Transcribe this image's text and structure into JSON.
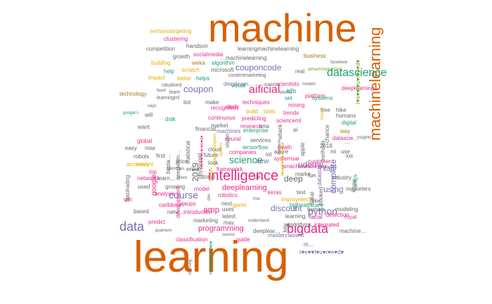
{
  "colors": {
    "orange": "#d95f02",
    "purple": "#7570b3",
    "magenta": "#e7298a",
    "green": "#66a61e",
    "mustard": "#e6ab02",
    "teal": "#1b9e77",
    "brown": "#a6761d",
    "gray": "#666666"
  },
  "words": [
    {
      "text": "machine",
      "color": "orange",
      "size": 56
    },
    {
      "text": "learning",
      "color": "orange",
      "size": 62
    },
    {
      "text": "machinelearning",
      "color": "orange",
      "size": 22,
      "rot": true
    },
    {
      "text": "intelligence",
      "color": "magenta",
      "size": 20
    },
    {
      "text": "bigdata",
      "color": "magenta",
      "size": 18
    },
    {
      "text": "data",
      "color": "purple",
      "size": 18
    },
    {
      "text": "datascience",
      "color": "teal",
      "size": 16
    },
    {
      "text": "aificial",
      "color": "magenta",
      "size": 16
    },
    {
      "text": "science",
      "color": "teal",
      "size": 14
    },
    {
      "text": "course",
      "color": "purple",
      "size": 14
    },
    {
      "text": "python",
      "color": "purple",
      "size": 14
    },
    {
      "text": "coupon",
      "color": "purple",
      "size": 13
    },
    {
      "text": "couponcode",
      "color": "purple",
      "size": 12
    },
    {
      "text": "discount",
      "color": "purple",
      "size": 12
    },
    {
      "text": "deep",
      "color": "gray",
      "size": 12
    },
    {
      "text": "udemy",
      "color": "purple",
      "size": 12
    },
    {
      "text": "complete",
      "color": "purple",
      "size": 12,
      "rot": true
    },
    {
      "text": "amp",
      "color": "magenta",
      "size": 12
    },
    {
      "text": "using",
      "color": "purple",
      "size": 12
    },
    {
      "text": "deeplearning",
      "color": "magenta",
      "size": 11
    },
    {
      "text": "programming",
      "color": "magenta",
      "size": 11
    },
    {
      "text": "google",
      "color": "magenta",
      "size": 10,
      "rot": true
    },
    {
      "text": "2019",
      "color": "gray",
      "size": 12,
      "rot": true
    },
    {
      "text": "learningmachinelearning",
      "color": "gray",
      "size": 8
    },
    {
      "text": "semseotargeting",
      "color": "mustard",
      "size": 8
    },
    {
      "text": "clustering",
      "color": "magenta",
      "size": 8
    },
    {
      "text": "handson",
      "color": "gray",
      "size": 8
    },
    {
      "text": "business",
      "color": "brown",
      "size": 8
    },
    {
      "text": "competition",
      "color": "gray",
      "size": 8
    },
    {
      "text": "socialmedia",
      "color": "magenta",
      "size": 8
    },
    {
      "text": "…machinelearning",
      "color": "gray",
      "size": 8
    },
    {
      "text": "growth",
      "color": "gray",
      "size": 8
    },
    {
      "text": "building",
      "color": "mustard",
      "size": 8
    },
    {
      "text": "weka",
      "color": "brown",
      "size": 8
    },
    {
      "text": "algorithm",
      "color": "teal",
      "size": 8
    },
    {
      "text": "facebook",
      "color": "gray",
      "size": 6
    },
    {
      "text": "aimachinelearning",
      "color": "green",
      "size": 6
    },
    {
      "text": "help",
      "color": "teal",
      "size": 8
    },
    {
      "text": "scratch",
      "color": "mustard",
      "size": 8
    },
    {
      "text": "microsoft",
      "color": "gray",
      "size": 8
    },
    {
      "text": "real",
      "color": "gray",
      "size": 8
    },
    {
      "text": "impact",
      "color": "mustard",
      "size": 8
    },
    {
      "text": "better",
      "color": "mustard",
      "size": 8
    },
    {
      "text": "helps",
      "color": "teal",
      "size": 8
    },
    {
      "text": "contentmarketing",
      "color": "gray",
      "size": 7
    },
    {
      "text": "rstudioml",
      "color": "gray",
      "size": 7
    },
    {
      "text": "visual",
      "color": "teal",
      "size": 8
    },
    {
      "text": "statistics",
      "color": "gray",
      "size": 6
    },
    {
      "text": "scientists",
      "color": "magenta",
      "size": 8
    },
    {
      "text": "models",
      "color": "gray",
      "size": 6
    },
    {
      "text": "team",
      "color": "gray",
      "size": 6
    },
    {
      "text": "learn",
      "color": "gray",
      "size": 7
    },
    {
      "text": "b2b",
      "color": "teal",
      "size": 8
    },
    {
      "text": "world",
      "color": "gray",
      "size": 7
    },
    {
      "text": "deeplearning…",
      "color": "magenta",
      "size": 8
    },
    {
      "text": "learningml",
      "color": "gray",
      "size": 7
    },
    {
      "text": "technology",
      "color": "brown",
      "size": 8
    },
    {
      "text": "deeplearn…",
      "color": "purple",
      "size": 8
    },
    {
      "text": "set",
      "color": "teal",
      "size": 8
    },
    {
      "text": "platform",
      "color": "magenta",
      "size": 8
    },
    {
      "text": "iiot",
      "color": "gray",
      "size": 8
    },
    {
      "text": "study",
      "color": "magenta",
      "size": 8
    },
    {
      "text": "techniques",
      "color": "magenta",
      "size": 8
    },
    {
      "text": "mining",
      "color": "magenta",
      "size": 8
    },
    {
      "text": "free",
      "color": "gray",
      "size": 8
    },
    {
      "text": "hike",
      "color": "gray",
      "size": 8
    },
    {
      "text": "says",
      "color": "gray",
      "size": 6
    },
    {
      "text": "will",
      "color": "gray",
      "size": 8
    },
    {
      "text": "bigda…",
      "color": "gray",
      "size": 8,
      "rot": true
    },
    {
      "text": "continuous",
      "color": "magenta",
      "size": 8
    },
    {
      "text": "build",
      "color": "mustard",
      "size": 8
    },
    {
      "text": "tools",
      "color": "mustard",
      "size": 8
    },
    {
      "text": "trends",
      "color": "magenta",
      "size": 8
    },
    {
      "text": "humans",
      "color": "gray",
      "size": 8
    },
    {
      "text": "google's",
      "color": "teal",
      "size": 6
    },
    {
      "text": "dstk",
      "color": "teal",
      "size": 8
    },
    {
      "text": "predicting",
      "color": "magenta",
      "size": 8
    },
    {
      "text": "scienceml",
      "color": "magenta",
      "size": 8
    },
    {
      "text": "digital",
      "color": "teal",
      "size": 8
    },
    {
      "text": "want",
      "color": "gray",
      "size": 8
    },
    {
      "text": "machines",
      "color": "purple",
      "size": 8
    },
    {
      "text": "market",
      "color": "gray",
      "size": 8
    },
    {
      "text": "research",
      "color": "magenta",
      "size": 8
    },
    {
      "text": "sma",
      "color": "gray",
      "size": 8
    },
    {
      "text": "way",
      "color": "brown",
      "size": 8
    },
    {
      "text": "global",
      "color": "magenta",
      "size": 8
    },
    {
      "text": "enterprise",
      "color": "teal",
      "size": 8
    },
    {
      "text": "fascinating",
      "color": "gray",
      "size": 8,
      "rot": true
    },
    {
      "text": "easy",
      "color": "gray",
      "size": 8
    },
    {
      "text": "now",
      "color": "gray",
      "size": 8
    },
    {
      "text": "neural",
      "color": "magenta",
      "size": 8
    },
    {
      "text": "services",
      "color": "gray",
      "size": 8
    },
    {
      "text": "datascie…",
      "color": "magenta",
      "size": 8
    },
    {
      "text": "tensorflow",
      "color": "teal",
      "size": 8
    },
    {
      "text": "death",
      "color": "magenta",
      "size": 8
    },
    {
      "text": "first",
      "color": "gray",
      "size": 8
    },
    {
      "text": "future",
      "color": "gray",
      "size": 8
    },
    {
      "text": "cloud",
      "color": "gray",
      "size": 8
    },
    {
      "text": "companies",
      "color": "magenta",
      "size": 8
    },
    {
      "text": "robots",
      "color": "gray",
      "size": 8
    },
    {
      "text": "accuracy",
      "color": "mustard",
      "size": 8
    },
    {
      "text": "price",
      "color": "gray",
      "size": 8
    },
    {
      "text": "look",
      "color": "gray",
      "size": 8
    },
    {
      "text": "systemsai",
      "color": "magenta",
      "size": 8
    },
    {
      "text": "customer",
      "color": "magenta",
      "size": 8
    },
    {
      "text": "ios",
      "color": "gray",
      "size": 8
    },
    {
      "text": "service",
      "color": "mustard",
      "size": 8
    },
    {
      "text": "top",
      "color": "magenta",
      "size": 8
    },
    {
      "text": "launches",
      "color": "gray",
      "size": 6
    },
    {
      "text": "enter",
      "color": "gray",
      "size": 8
    },
    {
      "text": "framework",
      "color": "magenta",
      "size": 8
    },
    {
      "text": "amachinelearning",
      "color": "magenta",
      "size": 8
    },
    {
      "text": "minutes",
      "color": "gray",
      "size": 6
    },
    {
      "text": "networks",
      "color": "magenta",
      "size": 8
    },
    {
      "text": "learn…",
      "color": "gray",
      "size": 8
    },
    {
      "text": "trees",
      "color": "gray",
      "size": 6
    },
    {
      "text": "tutorial",
      "color": "gray",
      "size": 8
    },
    {
      "text": "de…",
      "color": "gray",
      "size": 8
    },
    {
      "text": "used",
      "color": "gray",
      "size": 8
    },
    {
      "text": "growing",
      "color": "gray",
      "size": 8
    },
    {
      "text": "model",
      "color": "magenta",
      "size": 8
    },
    {
      "text": "marke…",
      "color": "gray",
      "size": 8
    },
    {
      "text": "fun",
      "color": "gray",
      "size": 8
    },
    {
      "text": "industry",
      "color": "gray",
      "size": 8
    },
    {
      "text": "analysis",
      "color": "magenta",
      "size": 8
    },
    {
      "text": "robotics",
      "color": "magenta",
      "size": 8
    },
    {
      "text": "text",
      "color": "gray",
      "size": 8
    },
    {
      "text": "marketers",
      "color": "gray",
      "size": 8
    },
    {
      "text": "keras",
      "color": "magenta",
      "size": 8
    },
    {
      "text": "win",
      "color": "magenta",
      "size": 8
    },
    {
      "text": "rise",
      "color": "gray",
      "size": 6
    },
    {
      "text": "improvetech",
      "color": "mustard",
      "size": 8
    },
    {
      "text": "caribbean",
      "color": "magenta",
      "size": 8
    },
    {
      "text": "staups",
      "color": "magenta",
      "size": 8
    },
    {
      "text": "next",
      "color": "gray",
      "size": 8
    },
    {
      "text": "bighealthcare",
      "color": "teal",
      "size": 8
    },
    {
      "text": "based",
      "color": "gray",
      "size": 8
    },
    {
      "text": "netw…",
      "color": "gray",
      "size": 8
    },
    {
      "text": "introduction",
      "color": "magenta",
      "size": 8
    },
    {
      "text": "uses",
      "color": "gray",
      "size": 8
    },
    {
      "text": "gems",
      "color": "mustard",
      "size": 8
    },
    {
      "text": "human",
      "color": "gray",
      "size": 8
    },
    {
      "text": "modeling",
      "color": "gray",
      "size": 8
    },
    {
      "text": "latest",
      "color": "gray",
      "size": 8
    },
    {
      "text": "detection",
      "color": "magenta",
      "size": 8
    },
    {
      "text": "learning…",
      "color": "gray",
      "size": 8
    },
    {
      "text": "facial",
      "color": "magenta",
      "size": 8
    },
    {
      "text": "royal",
      "color": "magenta",
      "size": 8
    },
    {
      "text": "predict",
      "color": "magenta",
      "size": 8
    },
    {
      "text": "marketing",
      "color": "gray",
      "size": 8
    },
    {
      "text": "may",
      "color": "gray",
      "size": 8
    },
    {
      "text": "understand",
      "color": "gray",
      "size": 6
    },
    {
      "text": "algorithms",
      "color": "gray",
      "size": 8
    },
    {
      "text": "integrated",
      "color": "magenta",
      "size": 8
    },
    {
      "text": "machine…",
      "color": "gray",
      "size": 8
    },
    {
      "text": "quantum",
      "color": "gray",
      "size": 6
    },
    {
      "text": "deeplear…",
      "color": "gray",
      "size": 8
    },
    {
      "text": "source",
      "color": "gray",
      "size": 6
    },
    {
      "text": "classification",
      "color": "magenta",
      "size": 8
    },
    {
      "text": "masterclassml",
      "color": "purple",
      "size": 8
    },
    {
      "text": "guide",
      "color": "magenta",
      "size": 8
    },
    {
      "text": "m…",
      "color": "gray",
      "size": 8
    },
    {
      "text": "ℓ♥e♥♥t♥u♥r♥e♥d♥",
      "color": "purple",
      "size": 8
    },
    {
      "text": "recognition",
      "color": "magenta",
      "size": 8
    },
    {
      "text": "vision",
      "color": "gray",
      "size": 8,
      "rot": true
    },
    {
      "text": "deepleam…",
      "color": "gray",
      "size": 8,
      "rot": true
    },
    {
      "text": "statistical",
      "color": "gray",
      "size": 8,
      "rot": true
    },
    {
      "text": "pythonml",
      "color": "gray",
      "size": 8,
      "rot": true
    },
    {
      "text": "make",
      "color": "gray",
      "size": 8
    },
    {
      "text": "development",
      "color": "magenta",
      "size": 8,
      "rot": true
    },
    {
      "text": "ro…",
      "color": "gray",
      "size": 8,
      "rot": true
    },
    {
      "text": "key",
      "color": "gray",
      "size": 8,
      "rot": true
    },
    {
      "text": "staup",
      "color": "gray",
      "size": 8,
      "rot": true
    },
    {
      "text": "hooked",
      "color": "gray",
      "size": 8,
      "rot": true
    },
    {
      "text": "methods",
      "color": "gray",
      "size": 8,
      "rot": true
    },
    {
      "text": "know",
      "color": "gray",
      "size": 8,
      "rot": true
    },
    {
      "text": "chance",
      "color": "gray",
      "size": 8,
      "rot": true
    },
    {
      "text": "apple",
      "color": "gray",
      "size": 8,
      "rot": true
    },
    {
      "text": "ways",
      "color": "teal",
      "size": 8,
      "rot": true
    },
    {
      "text": "systems",
      "color": "teal",
      "size": 8
    },
    {
      "text": "ℓ♥e♥♥t♥u♥r♥e♥d♥",
      "color": "green",
      "size": 8,
      "rot": true
    },
    {
      "text": "ai",
      "color": "gray",
      "size": 8
    },
    {
      "text": "can",
      "color": "purple",
      "size": 10
    },
    {
      "text": "new",
      "color": "purple",
      "size": 10
    },
    {
      "text": "iot",
      "color": "gray",
      "size": 8
    },
    {
      "text": "azure",
      "color": "gray",
      "size": 8
    },
    {
      "text": "2018",
      "color": "gray",
      "size": 8
    },
    {
      "text": "use",
      "color": "gray",
      "size": 8
    },
    {
      "text": "like",
      "color": "gray",
      "size": 8
    },
    {
      "text": "…",
      "color": "gray",
      "size": 8
    },
    {
      "text": "insights",
      "color": "gray",
      "size": 6
    },
    {
      "text": "datascie…",
      "color": "purple",
      "size": 8,
      "rot": true
    },
    {
      "text": "financial",
      "color": "gray",
      "size": 8
    },
    {
      "text": "ℓ♥e♥♥t♥u♥r♥e♥d♥",
      "color": "magenta",
      "size": 6,
      "rot": true
    },
    {
      "text": "science",
      "color": "mustard",
      "size": 6,
      "rot": true
    },
    {
      "text": "ℓ♥e♥♥t♥u♥r♥e♥d♥",
      "color": "mustard",
      "size": 6,
      "rot": true
    },
    {
      "text": "opencv",
      "color": "mustard",
      "size": 6,
      "rot": true
    },
    {
      "text": "deeplearningaws",
      "color": "mustard",
      "size": 6,
      "rot": true
    },
    {
      "text": "trends",
      "color": "mustard",
      "size": 6,
      "rot": true
    },
    {
      "text": "mi",
      "color": "gray",
      "size": 8
    },
    {
      "text": "dev",
      "color": "gray",
      "size": 6,
      "rot": true
    },
    {
      "text": "decision",
      "color": "gray",
      "size": 6,
      "rot": true
    },
    {
      "text": "attack",
      "color": "gray",
      "size": 8,
      "rot": true
    },
    {
      "text": "learning",
      "color": "gray",
      "size": 6,
      "rot": true
    },
    {
      "text": "ℓ♥e♥♥t♥u♥r♥e♥d♥",
      "color": "teal",
      "size": 6,
      "rot": true
    }
  ]
}
